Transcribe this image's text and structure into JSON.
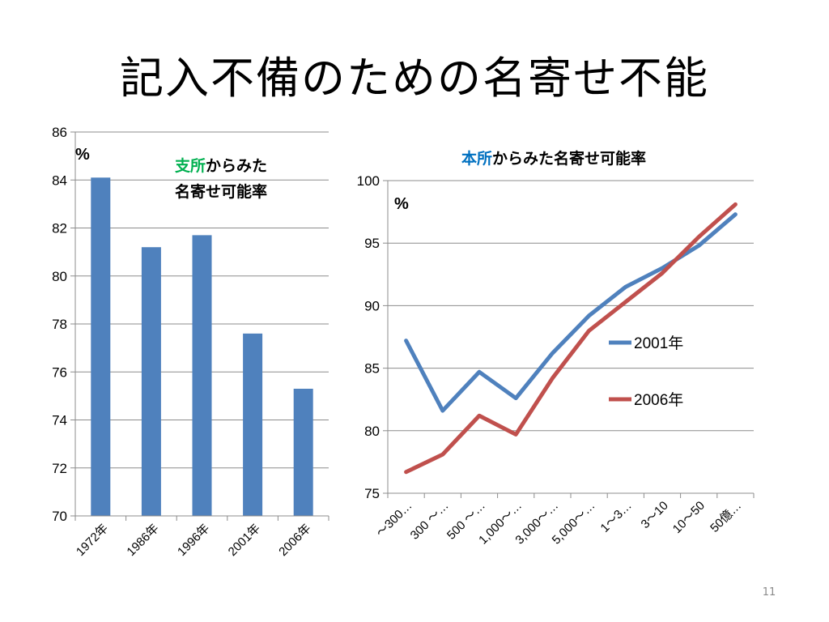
{
  "slide": {
    "title": "記入不備のための名寄せ不能",
    "page_number": "11"
  },
  "chart_data": [
    {
      "type": "bar",
      "title_highlight": "支所",
      "title_rest_line1": "からみた",
      "title_line2": "名寄せ可能率",
      "title_highlight_color": "#00b050",
      "unit_label": "%",
      "categories": [
        "1972年",
        "1986年",
        "1996年",
        "2001年",
        "2006年"
      ],
      "values": [
        84.1,
        81.2,
        81.7,
        77.6,
        75.3
      ],
      "ylim": [
        70,
        86
      ],
      "yticks": [
        70,
        72,
        74,
        76,
        78,
        80,
        82,
        84,
        86
      ],
      "bar_color": "#4f81bd",
      "grid": true
    },
    {
      "type": "line",
      "title_highlight": "本所",
      "title_rest": "からみた名寄せ可能率",
      "title_highlight_color": "#0070c0",
      "unit_label": "%",
      "categories": [
        "～300…",
        "300 ～…",
        "500 ～…",
        "1,000～…",
        "3,000～…",
        "5,000～…",
        "1～3…",
        "3～10",
        "10～50",
        "50億…"
      ],
      "series": [
        {
          "name": "2001年",
          "color": "#4f81bd",
          "values": [
            87.2,
            81.6,
            84.7,
            82.6,
            86.2,
            89.2,
            91.5,
            93.0,
            94.8,
            97.3
          ]
        },
        {
          "name": "2006年",
          "color": "#c0504d",
          "values": [
            76.7,
            78.1,
            81.2,
            79.7,
            84.2,
            88.0,
            90.3,
            92.6,
            95.5,
            98.1
          ]
        }
      ],
      "ylim": [
        75,
        100
      ],
      "yticks": [
        75,
        80,
        85,
        90,
        95,
        100
      ],
      "legend_position": "right",
      "grid": true
    }
  ]
}
